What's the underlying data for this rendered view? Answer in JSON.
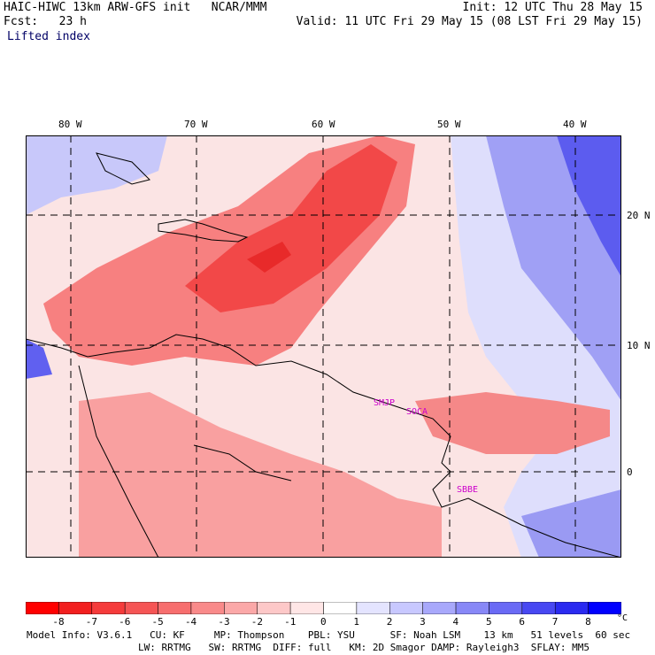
{
  "header": {
    "title_left": "HAIC-HIWC 13km ARW-GFS init   NCAR/MMM",
    "init": "Init: 12 UTC Thu 28 May 15",
    "fcst": "Fcst:   23 h",
    "valid": "Valid: 11 UTC Fri 29 May 15 (08 LST Fri 29 May 15)",
    "field": "Lifted index"
  },
  "map": {
    "lon_labels": [
      "80 W",
      "70 W",
      "60 W",
      "50 W",
      "40 W"
    ],
    "lat_labels": [
      "20 N",
      "10 N",
      "0"
    ],
    "stations": [
      "SMJP",
      "SOCA",
      "SBBE"
    ],
    "colors": {
      "strong_negative": "#f02828",
      "negative": "#f57070",
      "weak_negative": "#fab4b4",
      "near_zero": "#fff0f0",
      "weak_positive": "#dcdcff",
      "positive": "#8c8cf5",
      "strong_positive": "#4646f0"
    }
  },
  "colorbar": {
    "labels": [
      "-8",
      "-7",
      "-6",
      "-5",
      "-4",
      "-3",
      "-2",
      "-1",
      "0",
      "1",
      "2",
      "3",
      "4",
      "5",
      "6",
      "7",
      "8"
    ],
    "unit": "°C",
    "colors": [
      "#ff0000",
      "#f21f1f",
      "#f53b3b",
      "#f55555",
      "#f76e6e",
      "#f98a8a",
      "#fba8a8",
      "#fdc8c8",
      "#ffe6e6",
      "#ffffff",
      "#e4e4ff",
      "#c8c8ff",
      "#a8a8fb",
      "#8888f7",
      "#6a6af5",
      "#4848f2",
      "#2a2af0",
      "#0000ff"
    ]
  },
  "footer": {
    "line1": "Model Info: V3.6.1   CU: KF     MP: Thompson    PBL: YSU      SF: Noah LSM    13 km   51 levels  60 sec",
    "line2": "LW: RRTMG   SW: RRTMG  DIFF: full   KM: 2D Smagor DAMP: Rayleigh3  SFLAY: MM5"
  }
}
